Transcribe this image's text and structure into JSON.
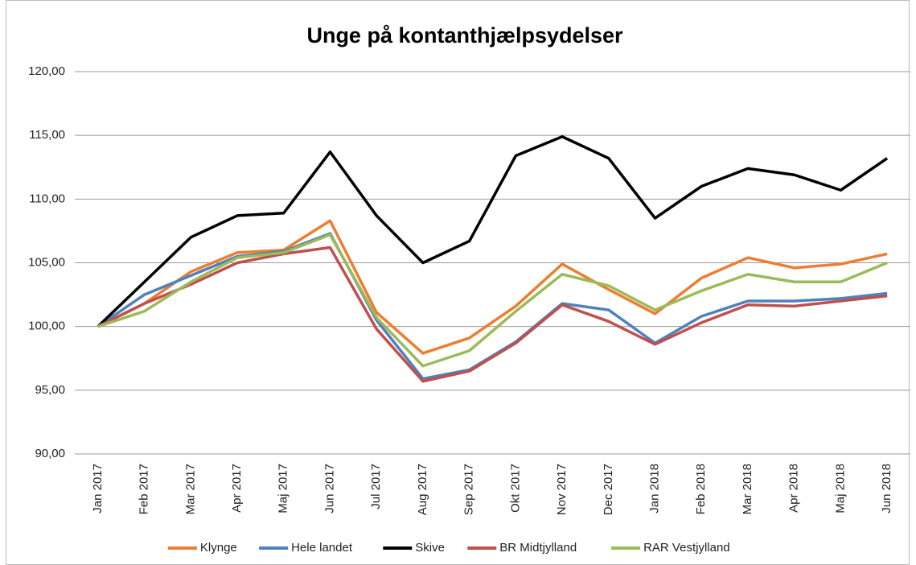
{
  "chart_data": {
    "type": "line",
    "title": "Unge på kontanthjælpsydelser",
    "categories": [
      "Jan 2017",
      "Feb 2017",
      "Mar 2017",
      "Apr 2017",
      "Maj 2017",
      "Jun 2017",
      "Jul 2017",
      "Aug 2017",
      "Sep 2017",
      "Okt 2017",
      "Nov 2017",
      "Dec 2017",
      "Jan 2018",
      "Feb 2018",
      "Mar 2018",
      "Apr 2018",
      "Maj 2018",
      "Jun 2018"
    ],
    "series": [
      {
        "name": "Klynge",
        "color": "#ed7d31",
        "values": [
          100,
          101.8,
          104.3,
          105.8,
          106.0,
          108.3,
          101.1,
          97.9,
          99.1,
          101.6,
          104.9,
          102.9,
          101.0,
          103.8,
          105.4,
          104.6,
          104.9,
          105.7
        ]
      },
      {
        "name": "Hele landet",
        "color": "#4f81bd",
        "values": [
          100,
          102.5,
          104.0,
          105.5,
          105.9,
          107.3,
          100.5,
          95.9,
          96.6,
          98.8,
          101.8,
          101.3,
          98.7,
          100.8,
          102.0,
          102.0,
          102.2,
          102.6
        ]
      },
      {
        "name": "Skive",
        "color": "#000000",
        "values": [
          100,
          103.5,
          107.0,
          108.7,
          108.9,
          113.7,
          108.7,
          105.0,
          106.7,
          113.4,
          114.9,
          113.2,
          108.5,
          111.0,
          112.4,
          111.9,
          110.7,
          113.2
        ]
      },
      {
        "name": "BR Midtjylland",
        "color": "#c0504d",
        "values": [
          100,
          101.8,
          103.3,
          105.0,
          105.7,
          106.2,
          99.8,
          95.7,
          96.5,
          98.7,
          101.7,
          100.4,
          98.6,
          100.3,
          101.7,
          101.6,
          102.0,
          102.4
        ]
      },
      {
        "name": "RAR Vestjylland",
        "color": "#9bbb59",
        "values": [
          100,
          101.2,
          103.5,
          105.4,
          105.8,
          107.2,
          100.7,
          96.9,
          98.1,
          101.2,
          104.1,
          103.2,
          101.3,
          102.8,
          104.1,
          103.5,
          103.5,
          105.0
        ]
      }
    ],
    "ylim": [
      90,
      120
    ],
    "yticks": [
      {
        "value": 90,
        "label": "90,00"
      },
      {
        "value": 95,
        "label": "95,00"
      },
      {
        "value": 100,
        "label": "100,00"
      },
      {
        "value": 105,
        "label": "105,00"
      },
      {
        "value": 110,
        "label": "110,00"
      },
      {
        "value": 115,
        "label": "115,00"
      },
      {
        "value": 120,
        "label": "120,00"
      }
    ],
    "grid": true
  }
}
